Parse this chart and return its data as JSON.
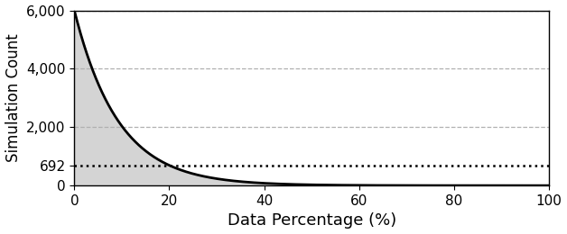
{
  "xlabel": "Data Percentage (%)",
  "ylabel": "Simulation Count",
  "xlim": [
    0,
    100
  ],
  "ylim": [
    0,
    6000
  ],
  "yticks": [
    0,
    692,
    2000,
    4000,
    6000
  ],
  "ytick_labels": [
    "0",
    "692",
    "2,000",
    "4,000",
    "6,000"
  ],
  "xticks": [
    0,
    20,
    40,
    60,
    80,
    100
  ],
  "xtick_labels": [
    "0",
    "20",
    "40",
    "60",
    "80",
    "100"
  ],
  "dotted_line_y": 692,
  "A": 6000,
  "b": 0.5,
  "fill_color": "#d4d4d4",
  "fill_alpha": 1.0,
  "curve_color": "#000000",
  "curve_linewidth": 2.0,
  "dotted_color": "#000000",
  "dotted_linewidth": 1.8,
  "grid_color": "#b0b0b0",
  "grid_linestyle": "--",
  "grid_linewidth": 0.9,
  "background_color": "#ffffff",
  "xlabel_fontsize": 13,
  "ylabel_fontsize": 12,
  "tick_fontsize": 11
}
